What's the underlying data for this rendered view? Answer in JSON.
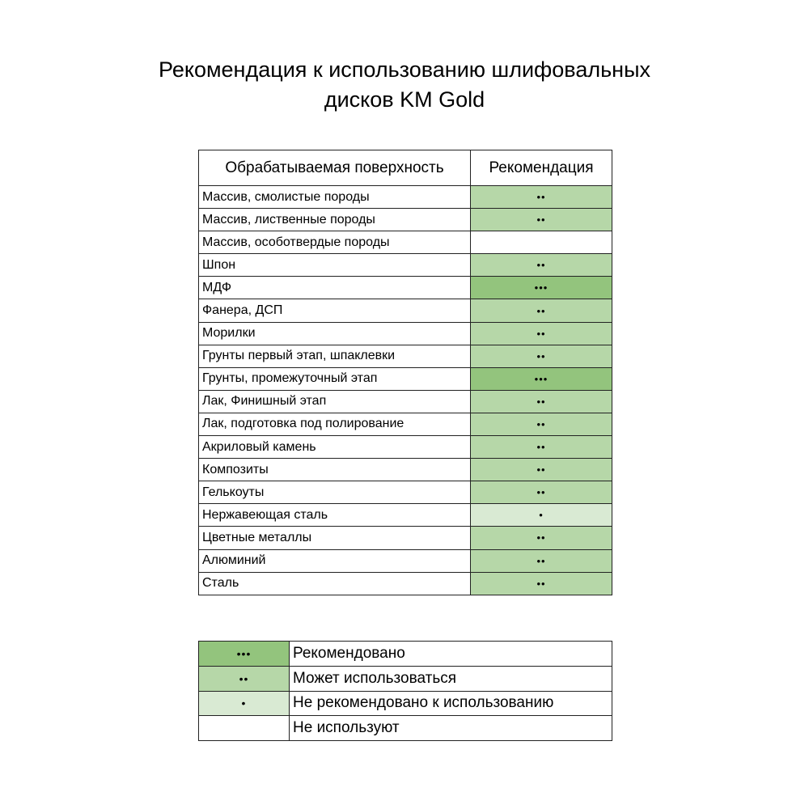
{
  "title": {
    "line1": "Рекомендация к использованию шлифовальных",
    "line2": "дисков KM Gold"
  },
  "colors": {
    "3": "#93c47d",
    "2": "#b6d7a8",
    "1": "#d9ead3",
    "0": "#ffffff"
  },
  "table": {
    "headers": [
      "Обрабатываемая поверхность",
      "Рекомендация"
    ],
    "rows": [
      {
        "surface": "Массив, смолистые породы",
        "marks": "••",
        "level": 2
      },
      {
        "surface": "Массив, лиственные породы",
        "marks": "••",
        "level": 2
      },
      {
        "surface": "Массив, особотвердые породы",
        "marks": "",
        "level": 0
      },
      {
        "surface": "Шпон",
        "marks": "••",
        "level": 2
      },
      {
        "surface": "МДФ",
        "marks": "•••",
        "level": 3
      },
      {
        "surface": "Фанера, ДСП",
        "marks": "••",
        "level": 2
      },
      {
        "surface": "Морилки",
        "marks": "••",
        "level": 2
      },
      {
        "surface": "Грунты первый этап, шпаклевки",
        "marks": "••",
        "level": 2
      },
      {
        "surface": "Грунты, промежуточный этап",
        "marks": "•••",
        "level": 3
      },
      {
        "surface": "Лак, Финишный этап",
        "marks": "••",
        "level": 2
      },
      {
        "surface": "Лак, подготовка под полирование",
        "marks": "••",
        "level": 2
      },
      {
        "surface": "Акриловый камень",
        "marks": "••",
        "level": 2
      },
      {
        "surface": "Композиты",
        "marks": "••",
        "level": 2
      },
      {
        "surface": "Гелькоуты",
        "marks": "••",
        "level": 2
      },
      {
        "surface": "Нержавеющая сталь",
        "marks": "•",
        "level": 1
      },
      {
        "surface": "Цветные металлы",
        "marks": "••",
        "level": 2
      },
      {
        "surface": "Алюминий",
        "marks": "••",
        "level": 2
      },
      {
        "surface": "Сталь",
        "marks": "••",
        "level": 2
      }
    ]
  },
  "legend": [
    {
      "marks": "•••",
      "level": 3,
      "label": "Рекомендовано"
    },
    {
      "marks": "••",
      "level": 2,
      "label": "Может использоваться"
    },
    {
      "marks": "•",
      "level": 1,
      "label": "Не рекомендовано к использованию"
    },
    {
      "marks": "",
      "level": 0,
      "label": "Не используют"
    }
  ]
}
